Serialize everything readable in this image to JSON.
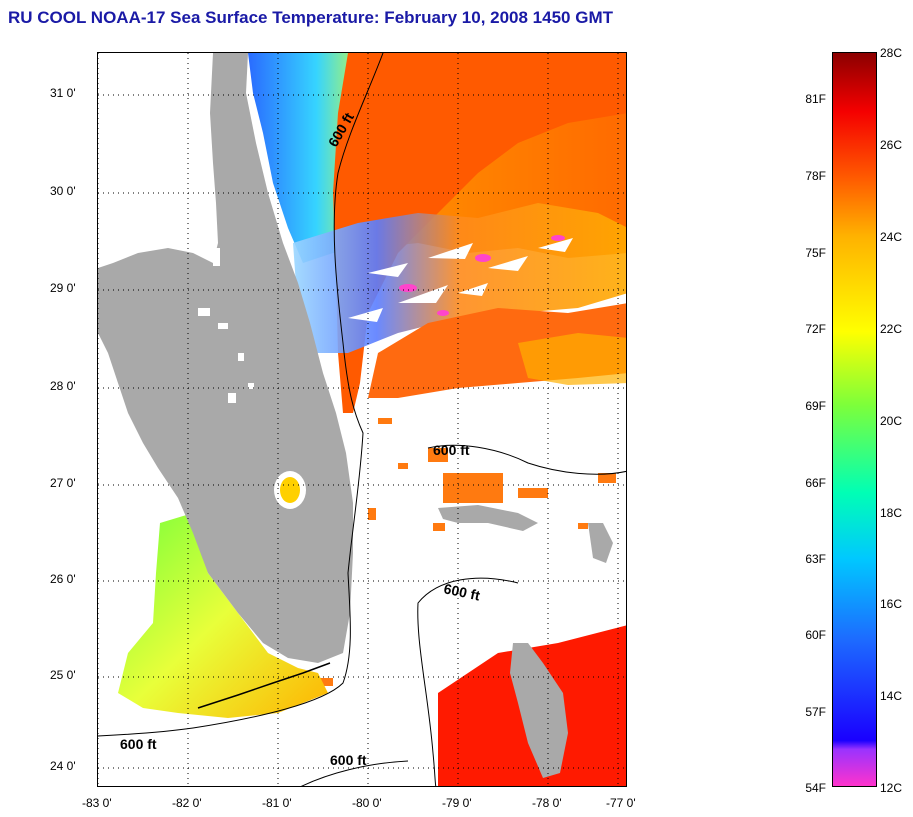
{
  "title": "RU COOL  NOAA-17  Sea Surface Temperature:  February 10, 2008 1450 GMT",
  "map": {
    "lat_ticks": [
      "31 0'",
      "30 0'",
      "29 0'",
      "28 0'",
      "27 0'",
      "26 0'",
      "25 0'",
      "24 0'"
    ],
    "lon_ticks": [
      "-83 0'",
      "-82 0'",
      "-81 0'",
      "-80 0'",
      "-79 0'",
      "-78 0'",
      "-77 0'"
    ],
    "lon_range": [
      -83.0,
      -77.2
    ],
    "lat_range": [
      23.8,
      31.45
    ],
    "grid": true,
    "depth_contour_label": "600 ft",
    "colors": {
      "land": "#a9a9a9",
      "no_data": "#ffffff",
      "warm": "#ff5a00",
      "cool": "#2a6bff"
    }
  },
  "colorbar": {
    "fahrenheit_labels": [
      "81F",
      "78F",
      "75F",
      "72F",
      "69F",
      "66F",
      "63F",
      "60F",
      "57F",
      "54F"
    ],
    "celsius_labels": [
      "28C",
      "26C",
      "24C",
      "22C",
      "20C",
      "18C",
      "16C",
      "14C",
      "12C"
    ],
    "range_c": [
      12,
      28
    ]
  }
}
